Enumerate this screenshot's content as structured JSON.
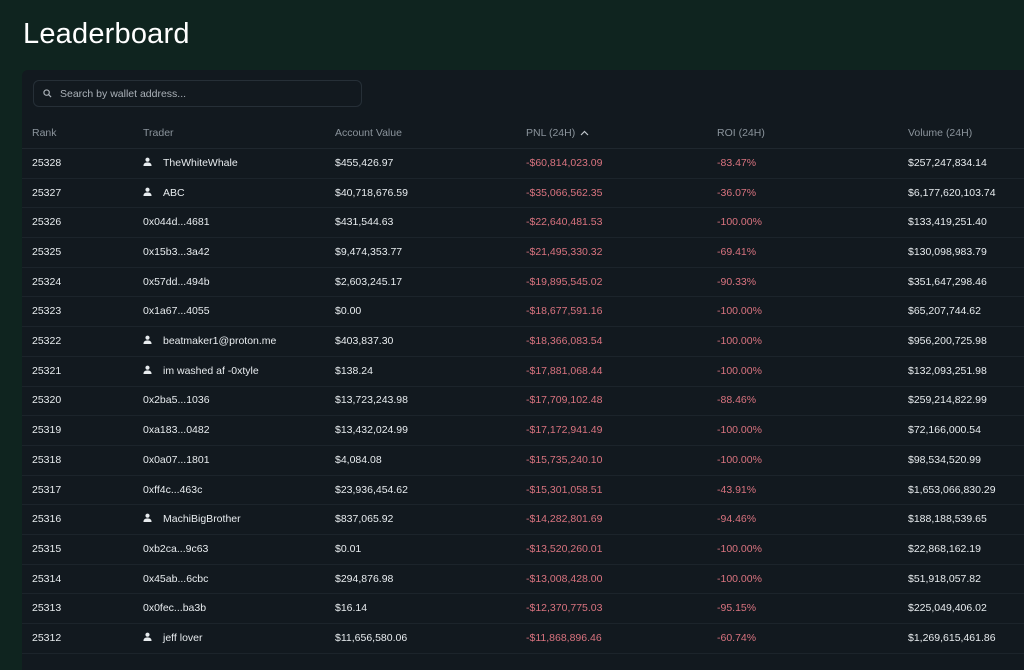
{
  "page_title": "Leaderboard",
  "search": {
    "placeholder": "Search by wallet address..."
  },
  "colors": {
    "background": "#0f241f",
    "panel": "#12191f",
    "negative": "#d9737f"
  },
  "columns": [
    "Rank",
    "Trader",
    "Account Value",
    "PNL (24H)",
    "ROI (24H)",
    "Volume (24H)"
  ],
  "sort": {
    "column": "PNL (24H)",
    "icon": "chevron-up-icon"
  },
  "rows": [
    {
      "rank": "25328",
      "trader": "TheWhiteWhale",
      "user": true,
      "account": "$455,426.97",
      "pnl": "-$60,814,023.09",
      "roi": "-83.47%",
      "volume": "$257,247,834.14"
    },
    {
      "rank": "25327",
      "trader": "ABC",
      "user": true,
      "account": "$40,718,676.59",
      "pnl": "-$35,066,562.35",
      "roi": "-36.07%",
      "volume": "$6,177,620,103.74"
    },
    {
      "rank": "25326",
      "trader": "0x044d...4681",
      "user": false,
      "account": "$431,544.63",
      "pnl": "-$22,640,481.53",
      "roi": "-100.00%",
      "volume": "$133,419,251.40"
    },
    {
      "rank": "25325",
      "trader": "0x15b3...3a42",
      "user": false,
      "account": "$9,474,353.77",
      "pnl": "-$21,495,330.32",
      "roi": "-69.41%",
      "volume": "$130,098,983.79"
    },
    {
      "rank": "25324",
      "trader": "0x57dd...494b",
      "user": false,
      "account": "$2,603,245.17",
      "pnl": "-$19,895,545.02",
      "roi": "-90.33%",
      "volume": "$351,647,298.46"
    },
    {
      "rank": "25323",
      "trader": "0x1a67...4055",
      "user": false,
      "account": "$0.00",
      "pnl": "-$18,677,591.16",
      "roi": "-100.00%",
      "volume": "$65,207,744.62"
    },
    {
      "rank": "25322",
      "trader": "beatmaker1@proton.me",
      "user": true,
      "account": "$403,837.30",
      "pnl": "-$18,366,083.54",
      "roi": "-100.00%",
      "volume": "$956,200,725.98"
    },
    {
      "rank": "25321",
      "trader": "im washed af -0xtyle",
      "user": true,
      "account": "$138.24",
      "pnl": "-$17,881,068.44",
      "roi": "-100.00%",
      "volume": "$132,093,251.98"
    },
    {
      "rank": "25320",
      "trader": "0x2ba5...1036",
      "user": false,
      "account": "$13,723,243.98",
      "pnl": "-$17,709,102.48",
      "roi": "-88.46%",
      "volume": "$259,214,822.99"
    },
    {
      "rank": "25319",
      "trader": "0xa183...0482",
      "user": false,
      "account": "$13,432,024.99",
      "pnl": "-$17,172,941.49",
      "roi": "-100.00%",
      "volume": "$72,166,000.54"
    },
    {
      "rank": "25318",
      "trader": "0x0a07...1801",
      "user": false,
      "account": "$4,084.08",
      "pnl": "-$15,735,240.10",
      "roi": "-100.00%",
      "volume": "$98,534,520.99"
    },
    {
      "rank": "25317",
      "trader": "0xff4c...463c",
      "user": false,
      "account": "$23,936,454.62",
      "pnl": "-$15,301,058.51",
      "roi": "-43.91%",
      "volume": "$1,653,066,830.29"
    },
    {
      "rank": "25316",
      "trader": "MachiBigBrother",
      "user": true,
      "account": "$837,065.92",
      "pnl": "-$14,282,801.69",
      "roi": "-94.46%",
      "volume": "$188,188,539.65"
    },
    {
      "rank": "25315",
      "trader": "0xb2ca...9c63",
      "user": false,
      "account": "$0.01",
      "pnl": "-$13,520,260.01",
      "roi": "-100.00%",
      "volume": "$22,868,162.19"
    },
    {
      "rank": "25314",
      "trader": "0x45ab...6cbc",
      "user": false,
      "account": "$294,876.98",
      "pnl": "-$13,008,428.00",
      "roi": "-100.00%",
      "volume": "$51,918,057.82"
    },
    {
      "rank": "25313",
      "trader": "0x0fec...ba3b",
      "user": false,
      "account": "$16.14",
      "pnl": "-$12,370,775.03",
      "roi": "-95.15%",
      "volume": "$225,049,406.02"
    },
    {
      "rank": "25312",
      "trader": "jeff lover",
      "user": true,
      "account": "$11,656,580.06",
      "pnl": "-$11,868,896.46",
      "roi": "-60.74%",
      "volume": "$1,269,615,461.86"
    }
  ]
}
